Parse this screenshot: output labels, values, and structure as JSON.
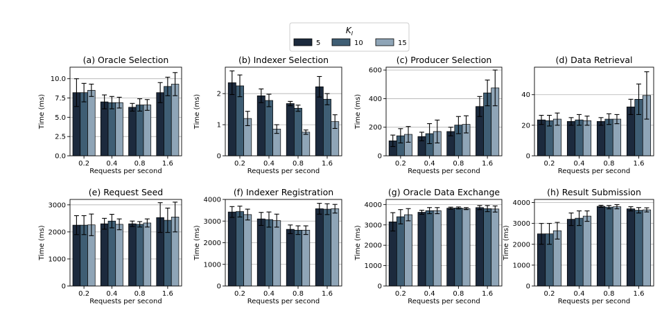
{
  "legend": {
    "title": "K_I",
    "title_main": "K",
    "title_sub": "I",
    "placement": "top-center",
    "entries": [
      "5",
      "10",
      "15"
    ]
  },
  "colors": [
    "#1c2a3d",
    "#3f5e74",
    "#8fa5b7"
  ],
  "chart_data": [
    {
      "type": "bar",
      "title": "(a) Oracle Selection",
      "xlabel": "Requests per second",
      "ylabel": "Time (ms)",
      "categories": [
        "0.2",
        "0.4",
        "0.8",
        "1.6"
      ],
      "ylim": [
        0,
        11.5
      ],
      "yticks": [
        0,
        2.5,
        5,
        7.5,
        10
      ],
      "ytick_labels": [
        "0.0",
        "2.5",
        "5.0",
        "7.5",
        "10.0"
      ],
      "grid": "y",
      "series": [
        {
          "name": "5",
          "values": [
            8.2,
            7.0,
            6.3,
            8.2
          ],
          "errors": [
            1.8,
            0.9,
            0.5,
            1.3
          ]
        },
        {
          "name": "10",
          "values": [
            8.2,
            6.9,
            6.6,
            9.0
          ],
          "errors": [
            1.2,
            0.8,
            0.8,
            1.2
          ]
        },
        {
          "name": "15",
          "values": [
            8.5,
            6.9,
            6.6,
            9.3
          ],
          "errors": [
            0.8,
            0.7,
            0.7,
            1.5
          ]
        }
      ]
    },
    {
      "type": "bar",
      "title": "(b) Indexer Selection",
      "xlabel": "Requests per second",
      "ylabel": "Time (ms)",
      "categories": [
        "0.2",
        "0.4",
        "0.8",
        "1.6"
      ],
      "ylim": [
        0,
        2.85
      ],
      "yticks": [
        0,
        1,
        2
      ],
      "ytick_labels": [
        "0",
        "1",
        "2"
      ],
      "grid": "y",
      "series": [
        {
          "name": "5",
          "values": [
            2.35,
            1.93,
            1.68,
            2.22
          ],
          "errors": [
            0.38,
            0.22,
            0.07,
            0.33
          ]
        },
        {
          "name": "10",
          "values": [
            2.25,
            1.78,
            1.53,
            1.82
          ],
          "errors": [
            0.35,
            0.2,
            0.1,
            0.18
          ]
        },
        {
          "name": "15",
          "values": [
            1.2,
            0.86,
            0.76,
            1.1
          ],
          "errors": [
            0.23,
            0.14,
            0.07,
            0.22
          ]
        }
      ]
    },
    {
      "type": "bar",
      "title": "(c) Producer Selection",
      "xlabel": "Requests per second",
      "ylabel": "Time (ms)",
      "categories": [
        "0.2",
        "0.4",
        "0.8",
        "1.6"
      ],
      "ylim": [
        0,
        620
      ],
      "yticks": [
        0,
        200,
        400,
        600
      ],
      "ytick_labels": [
        "0",
        "200",
        "400",
        "600"
      ],
      "grid": "y",
      "series": [
        {
          "name": "5",
          "values": [
            105,
            135,
            170,
            345
          ],
          "errors": [
            40,
            30,
            30,
            70
          ]
        },
        {
          "name": "10",
          "values": [
            140,
            155,
            215,
            440
          ],
          "errors": [
            50,
            70,
            60,
            90
          ]
        },
        {
          "name": "15",
          "values": [
            150,
            170,
            220,
            475
          ],
          "errors": [
            55,
            80,
            60,
            125
          ]
        }
      ]
    },
    {
      "type": "bar",
      "title": "(d) Data Retrieval",
      "xlabel": "Requests per second",
      "ylabel": "",
      "categories": [
        "0.2",
        "0.4",
        "0.8",
        "1.6"
      ],
      "ylim": [
        0,
        58
      ],
      "yticks": [
        0,
        20,
        40
      ],
      "ytick_labels": [
        "0",
        "20",
        "40"
      ],
      "grid": "y",
      "series": [
        {
          "name": "5",
          "values": [
            23.5,
            22.5,
            22.5,
            32.0
          ],
          "errors": [
            3.0,
            2.5,
            2.5,
            5.0
          ]
        },
        {
          "name": "10",
          "values": [
            23.0,
            23.5,
            24.0,
            37.0
          ],
          "errors": [
            3.5,
            3.5,
            3.5,
            10.0
          ]
        },
        {
          "name": "15",
          "values": [
            24.0,
            23.0,
            24.0,
            39.5
          ],
          "errors": [
            4.0,
            3.0,
            3.0,
            15.5
          ]
        }
      ]
    },
    {
      "type": "bar",
      "title": "(e) Request Seed",
      "xlabel": "Requests per second",
      "ylabel": "Time (ms)",
      "categories": [
        "0.2",
        "0.4",
        "0.8",
        "1.6"
      ],
      "ylim": [
        0,
        3200
      ],
      "yticks": [
        0,
        1000,
        2000,
        3000
      ],
      "ytick_labels": [
        "0",
        "1000",
        "2000",
        "3000"
      ],
      "grid": "y",
      "series": [
        {
          "name": "5",
          "values": [
            2250,
            2300,
            2300,
            2530
          ],
          "errors": [
            350,
            200,
            100,
            550
          ]
        },
        {
          "name": "10",
          "values": [
            2250,
            2400,
            2280,
            2430
          ],
          "errors": [
            350,
            250,
            100,
            450
          ]
        },
        {
          "name": "15",
          "values": [
            2260,
            2280,
            2330,
            2550
          ],
          "errors": [
            400,
            200,
            150,
            550
          ]
        }
      ]
    },
    {
      "type": "bar",
      "title": "(f) Indexer Registration",
      "xlabel": "Requests per second",
      "ylabel": "Time (ms)",
      "categories": [
        "0.2",
        "0.4",
        "0.8",
        "1.6"
      ],
      "ylim": [
        0,
        4000
      ],
      "yticks": [
        0,
        1000,
        2000,
        3000,
        4000
      ],
      "ytick_labels": [
        "0",
        "1000",
        "2000",
        "3000",
        "4000"
      ],
      "grid": "y",
      "series": [
        {
          "name": "5",
          "values": [
            3420,
            3100,
            2620,
            3570
          ],
          "errors": [
            250,
            300,
            200,
            250
          ]
        },
        {
          "name": "10",
          "values": [
            3440,
            3070,
            2580,
            3550
          ],
          "errors": [
            250,
            350,
            200,
            250
          ]
        },
        {
          "name": "15",
          "values": [
            3300,
            3020,
            2580,
            3570
          ],
          "errors": [
            250,
            300,
            200,
            200
          ]
        }
      ]
    },
    {
      "type": "bar",
      "title": "(g) Oracle Data Exchange",
      "xlabel": "Requests per second",
      "ylabel": "Time (ms)",
      "categories": [
        "0.2",
        "0.4",
        "0.8",
        "1.6"
      ],
      "ylim": [
        0,
        4250
      ],
      "yticks": [
        0,
        1000,
        2000,
        3000,
        4000
      ],
      "ytick_labels": [
        "0",
        "1000",
        "2000",
        "3000",
        "4000"
      ],
      "grid": "y",
      "series": [
        {
          "name": "5",
          "values": [
            3150,
            3620,
            3820,
            3850
          ],
          "errors": [
            450,
            100,
            50,
            100
          ]
        },
        {
          "name": "10",
          "values": [
            3400,
            3700,
            3830,
            3800
          ],
          "errors": [
            350,
            150,
            50,
            150
          ]
        },
        {
          "name": "15",
          "values": [
            3500,
            3700,
            3800,
            3780
          ],
          "errors": [
            300,
            150,
            50,
            150
          ]
        }
      ]
    },
    {
      "type": "bar",
      "title": "(h) Result Submission",
      "xlabel": "Requests per second",
      "ylabel": "Time (ms)",
      "categories": [
        "0.2",
        "0.4",
        "0.8",
        "1.6"
      ],
      "ylim": [
        0,
        4150
      ],
      "yticks": [
        0,
        1000,
        2000,
        3000,
        4000
      ],
      "ytick_labels": [
        "0",
        "1000",
        "2000",
        "3000",
        "4000"
      ],
      "grid": "y",
      "series": [
        {
          "name": "5",
          "values": [
            2500,
            3200,
            3820,
            3700
          ],
          "errors": [
            500,
            300,
            50,
            100
          ]
        },
        {
          "name": "10",
          "values": [
            2500,
            3250,
            3780,
            3630
          ],
          "errors": [
            500,
            350,
            80,
            130
          ]
        },
        {
          "name": "15",
          "values": [
            2650,
            3350,
            3800,
            3650
          ],
          "errors": [
            400,
            250,
            100,
            100
          ]
        }
      ]
    }
  ]
}
